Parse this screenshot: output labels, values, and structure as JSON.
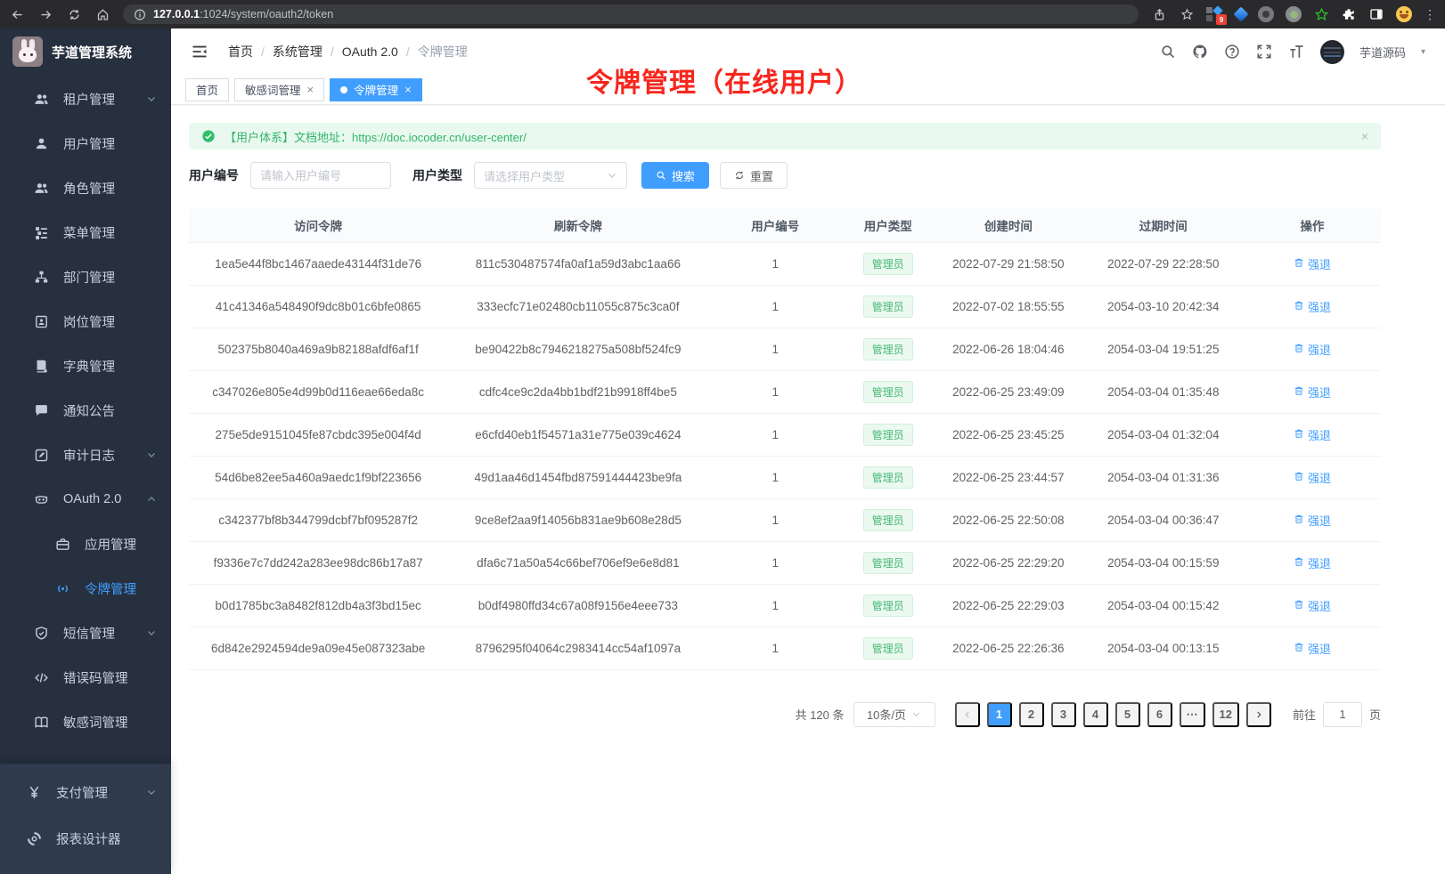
{
  "browser": {
    "url_host": "127.0.0.1",
    "url_path": ":1024/system/oauth2/token",
    "extensions_badge": "9"
  },
  "sidebar": {
    "app_title": "芋道管理系统",
    "items": [
      {
        "id": "tenant",
        "label": "租户管理",
        "icon": "users",
        "chevron": "down"
      },
      {
        "id": "user",
        "label": "用户管理",
        "icon": "user"
      },
      {
        "id": "role",
        "label": "角色管理",
        "icon": "users"
      },
      {
        "id": "menu",
        "label": "菜单管理",
        "icon": "tree-list"
      },
      {
        "id": "dept",
        "label": "部门管理",
        "icon": "org"
      },
      {
        "id": "post",
        "label": "岗位管理",
        "icon": "badge"
      },
      {
        "id": "dict",
        "label": "字典管理",
        "icon": "dict"
      },
      {
        "id": "notice",
        "label": "通知公告",
        "icon": "chat"
      },
      {
        "id": "audit",
        "label": "审计日志",
        "icon": "edit",
        "chevron": "down"
      },
      {
        "id": "oauth2",
        "label": "OAuth 2.0",
        "icon": "robot",
        "chevron": "up"
      },
      {
        "id": "oauth2-app",
        "label": "应用管理",
        "icon": "briefcase",
        "sub": true
      },
      {
        "id": "oauth2-token",
        "label": "令牌管理",
        "icon": "signal",
        "sub": true,
        "active": true
      },
      {
        "id": "sms",
        "label": "短信管理",
        "icon": "shield",
        "chevron": "down"
      },
      {
        "id": "errcode",
        "label": "错误码管理",
        "icon": "code"
      },
      {
        "id": "sensitive",
        "label": "敏感词管理",
        "icon": "book-open"
      }
    ],
    "footer_items": [
      {
        "id": "pay",
        "label": "支付管理",
        "icon": "yen",
        "chevron": "down"
      },
      {
        "id": "report",
        "label": "报表设计器",
        "icon": "loader"
      }
    ]
  },
  "header": {
    "breadcrumb": [
      "首页",
      "系统管理",
      "OAuth 2.0",
      "令牌管理"
    ],
    "username": "芋道源码"
  },
  "annotation": {
    "text": "令牌管理（在线用户）",
    "color": "#f7261d"
  },
  "tabs": [
    {
      "label": "首页",
      "closable": false,
      "active": false
    },
    {
      "label": "敏感词管理",
      "closable": true,
      "active": false
    },
    {
      "label": "令牌管理",
      "closable": true,
      "active": true
    }
  ],
  "alert": {
    "text": "【用户体系】文档地址：",
    "link": "https://doc.iocoder.cn/user-center/",
    "close": "×"
  },
  "filters": {
    "user_id_label": "用户编号",
    "user_id_placeholder": "请输入用户编号",
    "user_type_label": "用户类型",
    "user_type_placeholder": "请选择用户类型",
    "search_label": "搜索",
    "reset_label": "重置"
  },
  "table": {
    "columns": [
      "访问令牌",
      "刷新令牌",
      "用户编号",
      "用户类型",
      "创建时间",
      "过期时间",
      "操作"
    ],
    "action_label": "强退",
    "rows": [
      {
        "access": "1ea5e44f8bc1467aaede43144f31de76",
        "refresh": "811c530487574fa0af1a59d3abc1aa66",
        "user_id": "1",
        "user_type": "管理员",
        "created": "2022-07-29 21:58:50",
        "expires": "2022-07-29 22:28:50"
      },
      {
        "access": "41c41346a548490f9dc8b01c6bfe0865",
        "refresh": "333ecfc71e02480cb11055c875c3ca0f",
        "user_id": "1",
        "user_type": "管理员",
        "created": "2022-07-02 18:55:55",
        "expires": "2054-03-10 20:42:34"
      },
      {
        "access": "502375b8040a469a9b82188afdf6af1f",
        "refresh": "be90422b8c7946218275a508bf524fc9",
        "user_id": "1",
        "user_type": "管理员",
        "created": "2022-06-26 18:04:46",
        "expires": "2054-03-04 19:51:25"
      },
      {
        "access": "c347026e805e4d99b0d116eae66eda8c",
        "refresh": "cdfc4ce9c2da4bb1bdf21b9918ff4be5",
        "user_id": "1",
        "user_type": "管理员",
        "created": "2022-06-25 23:49:09",
        "expires": "2054-03-04 01:35:48"
      },
      {
        "access": "275e5de9151045fe87cbdc395e004f4d",
        "refresh": "e6cfd40eb1f54571a31e775e039c4624",
        "user_id": "1",
        "user_type": "管理员",
        "created": "2022-06-25 23:45:25",
        "expires": "2054-03-04 01:32:04"
      },
      {
        "access": "54d6be82ee5a460a9aedc1f9bf223656",
        "refresh": "49d1aa46d1454fbd87591444423be9fa",
        "user_id": "1",
        "user_type": "管理员",
        "created": "2022-06-25 23:44:57",
        "expires": "2054-03-04 01:31:36"
      },
      {
        "access": "c342377bf8b344799dcbf7bf095287f2",
        "refresh": "9ce8ef2aa9f14056b831ae9b608e28d5",
        "user_id": "1",
        "user_type": "管理员",
        "created": "2022-06-25 22:50:08",
        "expires": "2054-03-04 00:36:47"
      },
      {
        "access": "f9336e7c7dd242a283ee98dc86b17a87",
        "refresh": "dfa6c71a50a54c66bef706ef9e6e8d81",
        "user_id": "1",
        "user_type": "管理员",
        "created": "2022-06-25 22:29:20",
        "expires": "2054-03-04 00:15:59"
      },
      {
        "access": "b0d1785bc3a8482f812db4a3f3bd15ec",
        "refresh": "b0df4980ffd34c67a08f9156e4eee733",
        "user_id": "1",
        "user_type": "管理员",
        "created": "2022-06-25 22:29:03",
        "expires": "2054-03-04 00:15:42"
      },
      {
        "access": "6d842e2924594de9a09e45e087323abe",
        "refresh": "8796295f04064c2983414cc54af1097a",
        "user_id": "1",
        "user_type": "管理员",
        "created": "2022-06-25 22:26:36",
        "expires": "2054-03-04 00:13:15"
      }
    ]
  },
  "pagination": {
    "total": "共 120 条",
    "page_size": "10条/页",
    "pages": [
      "1",
      "2",
      "3",
      "4",
      "5",
      "6",
      "⋯",
      "12"
    ],
    "active_page": "1",
    "goto_label": "前往",
    "goto_value": "1",
    "goto_unit": "页"
  },
  "colors": {
    "accent": "#409eff",
    "success": "#47b976",
    "annotation_red": "#f7261d"
  }
}
